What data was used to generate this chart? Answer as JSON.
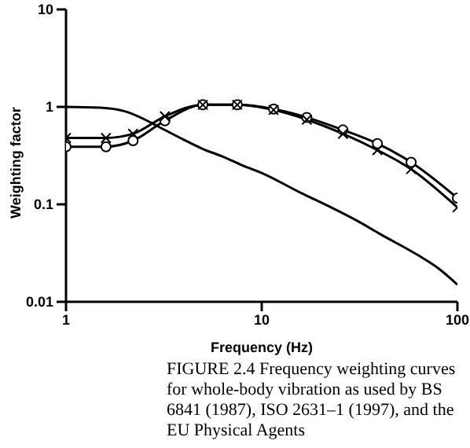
{
  "chart_data": {
    "type": "line",
    "xlabel": "Frequency (Hz)",
    "ylabel": "Weighting factor",
    "log": "xy",
    "xlim": [
      1,
      100
    ],
    "xticks": [
      1,
      10,
      100
    ],
    "ylim": [
      0.01,
      10
    ],
    "yticks": [
      0.01,
      0.1,
      1,
      10
    ],
    "grid": false,
    "legend": false,
    "line_style": "solid",
    "series": [
      {
        "color": "#000000",
        "marker": "none",
        "x": [
          1,
          1.5,
          2,
          2.5,
          3,
          4,
          5,
          6.3,
          8,
          10,
          16,
          20,
          31.5,
          40,
          63,
          80,
          100
        ],
        "values": [
          1.0,
          0.98,
          0.9,
          0.75,
          0.62,
          0.46,
          0.37,
          0.31,
          0.25,
          0.21,
          0.13,
          0.105,
          0.066,
          0.05,
          0.03,
          0.022,
          0.015
        ]
      },
      {
        "color": "#000000",
        "marker": "circle",
        "x": [
          1,
          1.6,
          2.2,
          3.2,
          5,
          7.5,
          11.5,
          17,
          26,
          39,
          58,
          100
        ],
        "values": [
          0.39,
          0.39,
          0.45,
          0.72,
          1.05,
          1.05,
          0.95,
          0.78,
          0.58,
          0.42,
          0.27,
          0.116
        ]
      },
      {
        "color": "#000000",
        "marker": "cross",
        "x": [
          1,
          1.6,
          2.2,
          3.2,
          5,
          7.5,
          11.5,
          17,
          26,
          39,
          58,
          100
        ],
        "values": [
          0.48,
          0.48,
          0.53,
          0.8,
          1.05,
          1.05,
          0.93,
          0.74,
          0.53,
          0.36,
          0.23,
          0.093
        ]
      }
    ],
    "annotations": [
      "FIGURE 2.4 Frequency weighting curves for whole-body vibration as used by BS 6841 (1987), ISO 2631–1 (1997), and the EU Physical Agents"
    ]
  }
}
